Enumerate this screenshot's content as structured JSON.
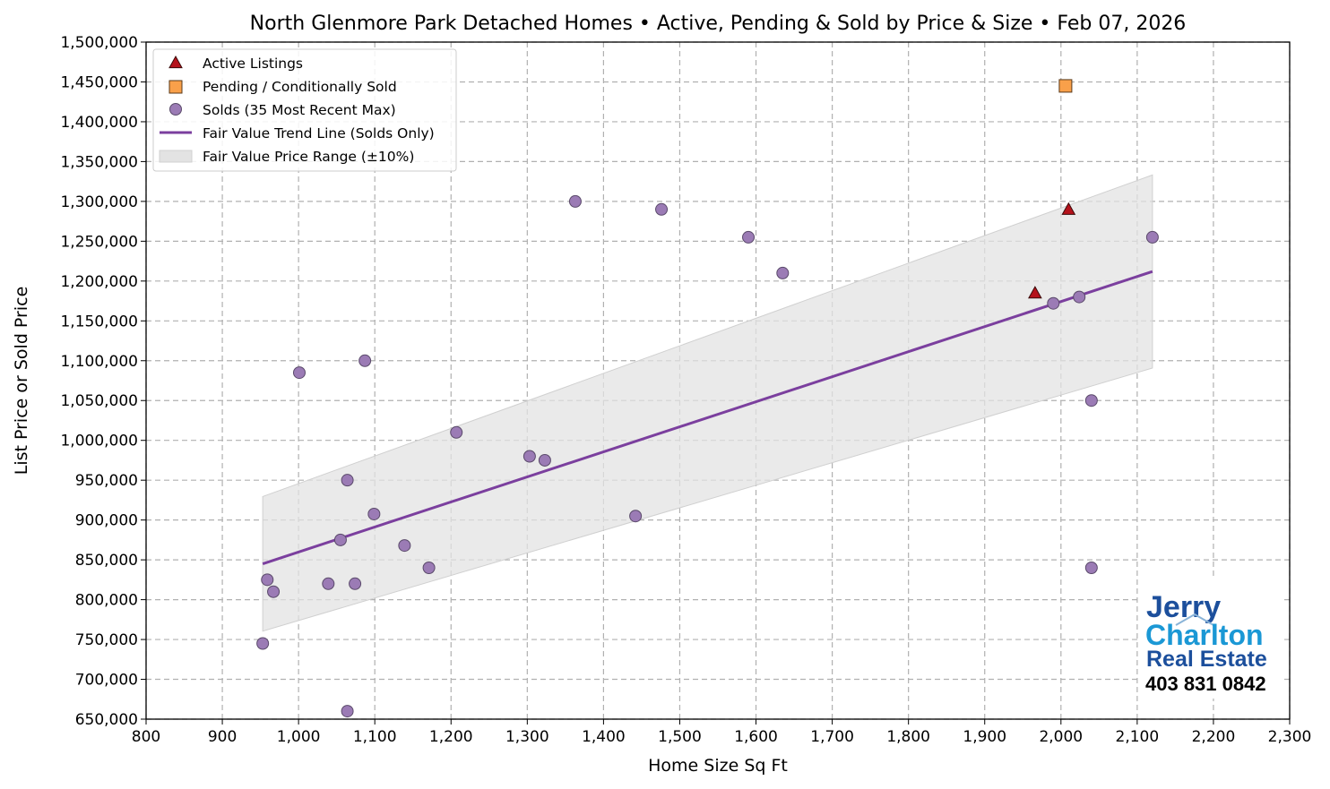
{
  "chart_data": {
    "type": "scatter",
    "title": "North Glenmore Park Detached Homes • Active, Pending & Sold by Price & Size • Feb 07, 2026",
    "xlabel": "Home Size Sq Ft",
    "ylabel": "List Price or Sold Price",
    "xlim": [
      800,
      2300
    ],
    "ylim": [
      650000,
      1500000
    ],
    "xticks": [
      800,
      900,
      1000,
      1100,
      1200,
      1300,
      1400,
      1500,
      1600,
      1700,
      1800,
      1900,
      2000,
      2100,
      2200,
      2300
    ],
    "xtick_labels": [
      "800",
      "900",
      "1,000",
      "1,100",
      "1,200",
      "1,300",
      "1,400",
      "1,500",
      "1,600",
      "1,700",
      "1,800",
      "1,900",
      "2,000",
      "2,100",
      "2,200",
      "2,300"
    ],
    "yticks": [
      650000,
      700000,
      750000,
      800000,
      850000,
      900000,
      950000,
      1000000,
      1050000,
      1100000,
      1150000,
      1200000,
      1250000,
      1300000,
      1350000,
      1400000,
      1450000,
      1500000
    ],
    "ytick_labels": [
      "650,000",
      "700,000",
      "750,000",
      "800,000",
      "850,000",
      "900,000",
      "950,000",
      "1,000,000",
      "1,050,000",
      "1,100,000",
      "1,150,000",
      "1,200,000",
      "1,250,000",
      "1,300,000",
      "1,350,000",
      "1,400,000",
      "1,450,000",
      "1,500,000"
    ],
    "grid": true,
    "legend_position": "top-left",
    "series": [
      {
        "name": "Active Listings",
        "marker": "triangle",
        "color": "#b5121b",
        "points": [
          [
            1966,
            1185000
          ],
          [
            2010,
            1290000
          ]
        ]
      },
      {
        "name": "Pending / Conditionally Sold",
        "marker": "square",
        "color": "#f9a04a",
        "points": [
          [
            2006,
            1445000
          ]
        ]
      },
      {
        "name": "Solds (35 Most Recent Max)",
        "marker": "circle",
        "color": "#9b7bb5",
        "points": [
          [
            953,
            745000
          ],
          [
            959,
            825000
          ],
          [
            967,
            810000
          ],
          [
            1001,
            1085000
          ],
          [
            1039,
            820000
          ],
          [
            1055,
            875000
          ],
          [
            1064,
            950000
          ],
          [
            1064,
            660000
          ],
          [
            1074,
            820000
          ],
          [
            1087,
            1100000
          ],
          [
            1099,
            907500
          ],
          [
            1139,
            868000
          ],
          [
            1171,
            840000
          ],
          [
            1207,
            1010000
          ],
          [
            1303,
            980000
          ],
          [
            1323,
            975000
          ],
          [
            1363,
            1300000
          ],
          [
            1442,
            905000
          ],
          [
            1476,
            1290000
          ],
          [
            1590,
            1255000
          ],
          [
            1635,
            1210000
          ],
          [
            1990,
            1172000
          ],
          [
            2024,
            1180000
          ],
          [
            2040,
            1050000
          ],
          [
            2040,
            840000
          ],
          [
            2120,
            1255000
          ]
        ]
      },
      {
        "name": "Fair Value Trend Line (Solds Only)",
        "type": "line",
        "color": "#7b3f9e",
        "points": [
          [
            953,
            845000
          ],
          [
            2120,
            1212000
          ]
        ]
      },
      {
        "name": "Fair Value Price Range (±10%)",
        "type": "band",
        "color": "#e3e3e3",
        "band_pct": 10
      }
    ]
  },
  "logo": {
    "line1": "Jerry",
    "line2": "Charlton",
    "line3": "Real Estate",
    "phone": "403 831 0842"
  }
}
